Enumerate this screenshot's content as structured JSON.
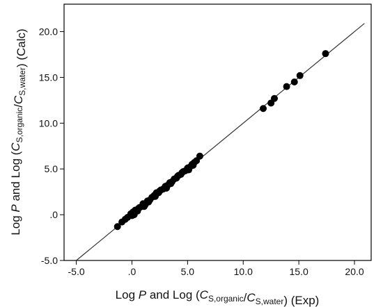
{
  "chart_data": {
    "type": "scatter",
    "title": "",
    "xlabel": {
      "parts": [
        {
          "t": "Log "
        },
        {
          "t": "P",
          "italic": true
        },
        {
          "t": " and Log ("
        },
        {
          "t": "C",
          "italic": true
        },
        {
          "t": "S,organic",
          "sub": true
        },
        {
          "t": "/"
        },
        {
          "t": "C",
          "italic": true
        },
        {
          "t": "S,water",
          "sub": true
        },
        {
          "t": ")  (Exp)"
        }
      ]
    },
    "ylabel": {
      "parts": [
        {
          "t": "Log "
        },
        {
          "t": "P",
          "italic": true
        },
        {
          "t": " and Log ("
        },
        {
          "t": "C",
          "italic": true
        },
        {
          "t": "S,organic",
          "sub": true
        },
        {
          "t": "/"
        },
        {
          "t": "C",
          "italic": true
        },
        {
          "t": "S,water",
          "sub": true
        },
        {
          "t": ")  (Calc)"
        }
      ]
    },
    "xlim": [
      -6.1,
      21.5
    ],
    "ylim": [
      -5.0,
      23.0
    ],
    "xticks": [
      -5.0,
      0.0,
      5.0,
      10.0,
      15.0,
      20.0
    ],
    "xtick_labels": [
      "-5.0",
      ".0",
      "5.0",
      "10.0",
      "15.0",
      "20.0"
    ],
    "yticks": [
      -5.0,
      0.0,
      5.0,
      10.0,
      15.0,
      20.0
    ],
    "ytick_labels": [
      "-5.0",
      ".0",
      "5.0",
      "10.0",
      "15.0",
      "20.0"
    ],
    "grid": false,
    "fit_line": {
      "x": [
        -5.0,
        20.9
      ],
      "y": [
        -5.0,
        20.9
      ]
    },
    "colors": {
      "points": "#000000",
      "line": "#333333",
      "axis": "#000000"
    },
    "series": [
      {
        "x": [
          -1.3,
          -0.9,
          -0.6,
          -0.4,
          -0.1,
          0.0,
          0.1,
          0.3,
          0.5,
          0.7,
          0.9,
          1.0,
          1.2,
          1.4,
          1.6,
          1.8,
          2.0,
          2.2,
          2.4,
          2.6,
          2.8,
          3.0,
          3.2,
          3.4,
          3.6,
          3.8,
          4.0,
          4.2,
          4.4,
          4.6,
          4.8,
          5.0,
          5.2,
          5.4,
          5.6,
          5.8,
          6.1,
          0.2,
          0.6,
          1.1,
          1.5,
          2.1,
          2.5,
          3.1,
          3.5,
          4.1,
          4.5,
          5.1,
          5.5,
          11.8,
          12.5,
          12.8,
          13.9,
          14.6,
          15.1,
          17.4
        ],
        "y": [
          -1.3,
          -0.8,
          -0.5,
          -0.3,
          0.1,
          -0.1,
          0.3,
          0.5,
          0.4,
          0.8,
          0.9,
          1.2,
          1.1,
          1.5,
          1.6,
          1.9,
          2.1,
          2.4,
          2.4,
          2.7,
          2.8,
          3.1,
          3.2,
          3.5,
          3.6,
          3.9,
          4.0,
          4.3,
          4.4,
          4.7,
          4.8,
          5.1,
          5.2,
          5.5,
          5.7,
          5.9,
          6.4,
          0.0,
          0.7,
          0.9,
          1.4,
          2.0,
          2.6,
          2.9,
          3.4,
          4.2,
          4.6,
          4.9,
          5.4,
          11.6,
          12.2,
          12.7,
          14.0,
          14.5,
          15.2,
          17.6
        ]
      }
    ]
  }
}
